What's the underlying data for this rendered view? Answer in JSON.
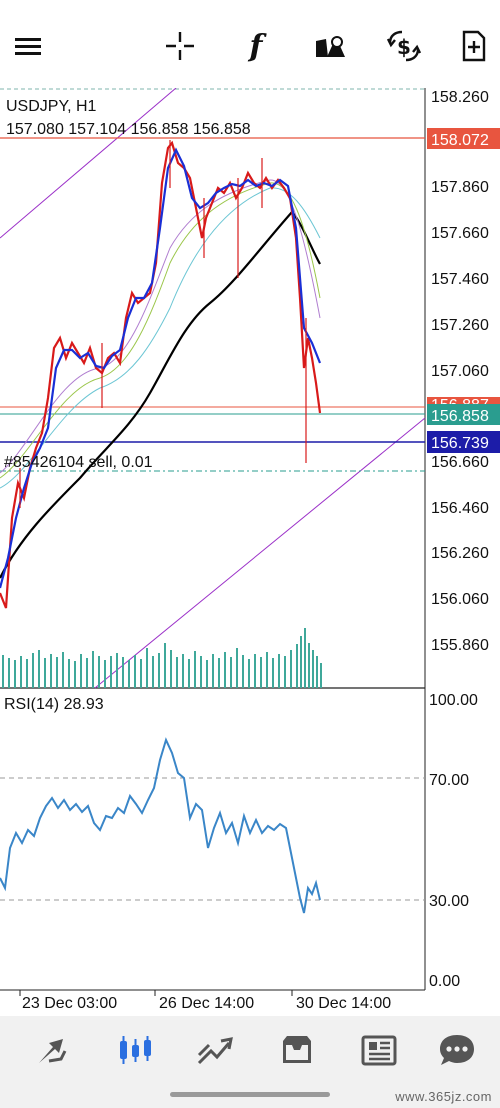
{
  "toolbar": {
    "icons": [
      "menu-icon",
      "crosshair-icon",
      "function-icon",
      "objects-icon",
      "currency-exchange-icon",
      "new-document-icon"
    ],
    "function_glyph": "f"
  },
  "chart": {
    "symbol_label": "USDJPY, H1",
    "ohlc_label": "157.080 157.104 156.858 156.858",
    "order_label": "#85426104 sell, 0.01",
    "price_scale": [
      "158.260",
      "157.860",
      "157.660",
      "157.460",
      "157.260",
      "157.060",
      "156.660",
      "156.460",
      "156.260",
      "156.060",
      "155.860"
    ],
    "price_badges": [
      {
        "value": "158.072",
        "color": "#e8553f"
      },
      {
        "value": "156.887",
        "color": "#e8553f"
      },
      {
        "value": "156.858",
        "color": "#2a9d8f"
      },
      {
        "value": "156.739",
        "color": "#1c1ca8"
      }
    ],
    "time_labels": [
      "23 Dec 03:00",
      "26 Dec 14:00",
      "30 Dec 14:00"
    ],
    "rsi_label": "RSI(14) 28.93",
    "rsi_scale": [
      "100.00",
      "70.00",
      "30.00",
      "0.00"
    ],
    "colors": {
      "bull": "#1a2fd6",
      "bear": "#d81a1a",
      "ma_slow": "#000000",
      "rsi": "#3a86c8",
      "trendline": "#9b30c8",
      "volume": "#3fa89a"
    }
  },
  "chart_data": {
    "type": "line",
    "title": "USDJPY, H1",
    "x": [
      "23 Dec 03:00",
      "26 Dec 14:00",
      "30 Dec 14:00"
    ],
    "series": [
      {
        "name": "RSI(14)",
        "last": 28.93
      },
      {
        "name": "USDJPY, H1",
        "open": 157.08,
        "high": 157.104,
        "low": 156.858,
        "close": 156.858
      }
    ],
    "ylim": [
      155.86,
      158.26
    ],
    "rsi_levels": [
      70,
      30
    ],
    "rsi_ylim": [
      0,
      100
    ]
  },
  "bottom_nav": {
    "items": [
      "quotes-icon",
      "chart-icon",
      "trade-icon",
      "history-icon",
      "news-icon",
      "messages-icon"
    ]
  },
  "watermark": "www.365jz.com"
}
